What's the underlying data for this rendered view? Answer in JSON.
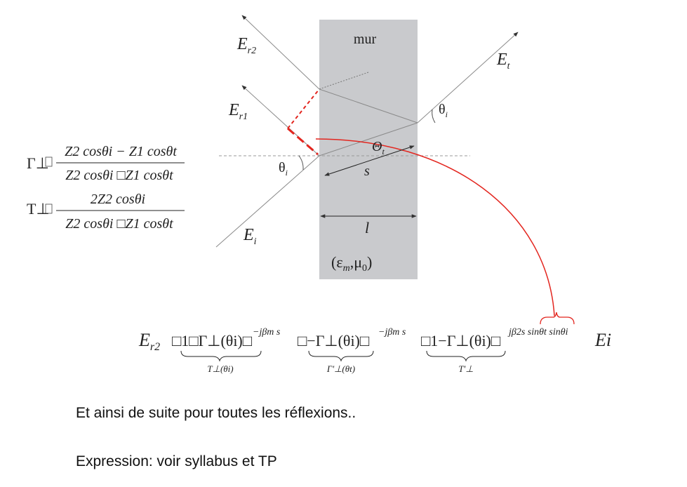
{
  "colors": {
    "wall": "#c9cacd",
    "ray": "#8a8a8a",
    "highlight": "#e3261f"
  },
  "diagram": {
    "wall_label": "mur",
    "wall_medium": "(εm, μ0)",
    "wall_medium_parts": {
      "open": "(ε",
      "eps_sub": "m",
      "sep": ",μ",
      "mu_sub": "0",
      "close": ")"
    },
    "thickness_label": "l",
    "path_label": "s",
    "rays": {
      "incident": {
        "base": "E",
        "sub": "i"
      },
      "reflected_1": {
        "base": "E",
        "sub": "r1"
      },
      "reflected_2": {
        "base": "E",
        "sub": "r2"
      },
      "transmitted": {
        "base": "E",
        "sub": "t"
      }
    },
    "angles": {
      "incident": {
        "base": "θ",
        "sub": "i"
      },
      "transmitted_inside": {
        "base": "Θ",
        "sub": "t"
      },
      "exit": {
        "base": "θ",
        "sub": "i"
      }
    }
  },
  "formulas": {
    "gamma_perp": {
      "lhs": "Γ⊥",
      "numerator": "Z2 cosθi − Z1 cosθt",
      "denominator": "Z2 cosθi □Z1 cosθt"
    },
    "t_perp": {
      "lhs": "T⊥",
      "numerator": "2Z2 cosθi",
      "denominator": "Z2 cosθi □Z1 cosθt"
    },
    "er2": {
      "lhs": "Er2",
      "factor_1": "□1□Γ⊥(θi)□",
      "exp_1": "−jβm s",
      "factor_2": "□−Γ⊥(θi)□",
      "exp_2": "−jβm s",
      "factor_3": "□1−Γ⊥(θi)□",
      "exp_3": "jβ2s sinθt sinθi",
      "tail": "Ei",
      "brace_1_label": "T⊥(θi)",
      "brace_2_label": "Γ'⊥(θt)",
      "brace_3_label": "T'⊥"
    }
  },
  "text": {
    "line_1": "Et ainsi de suite pour toutes les réflexions..",
    "line_2": "Expression: voir syllabus et TP"
  }
}
